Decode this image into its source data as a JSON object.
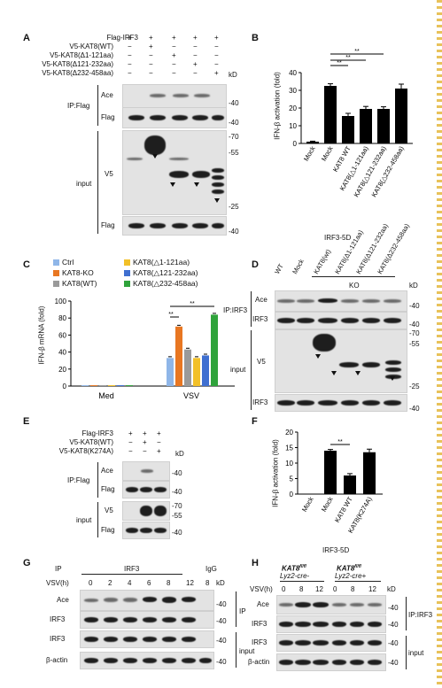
{
  "panels": [
    "A",
    "B",
    "C",
    "D",
    "E",
    "F",
    "G",
    "H"
  ],
  "A": {
    "rows": [
      {
        "label": "Flag-IRF3",
        "signs": [
          "+",
          "+",
          "+",
          "+",
          "+"
        ]
      },
      {
        "label": "V5-KAT8(WT)",
        "signs": [
          "−",
          "+",
          "−",
          "−",
          "−"
        ]
      },
      {
        "label": "V5-KAT8(Δ1-121aa)",
        "signs": [
          "−",
          "−",
          "+",
          "−",
          "−"
        ]
      },
      {
        "label": "V5-KAT8(Δ121-232aa)",
        "signs": [
          "−",
          "−",
          "−",
          "+",
          "−"
        ]
      },
      {
        "label": "V5-KAT8(Δ232-458aa)",
        "signs": [
          "−",
          "−",
          "−",
          "−",
          "+"
        ]
      }
    ],
    "kd": "kD",
    "group_ip": "IP:Flag",
    "group_input": "input",
    "blot_labels": [
      "Ace",
      "Flag",
      "V5",
      "Flag"
    ],
    "markers": [
      "-40",
      "-40",
      "-70",
      "-55",
      "-25",
      "-40"
    ]
  },
  "B": {
    "ylabel": "IFN-β activation (fold)",
    "yticks": [
      "0",
      "10",
      "20",
      "30",
      "40"
    ],
    "footer": "IRF3-5D",
    "sig": [
      "**",
      "**",
      "**"
    ]
  },
  "C": {
    "ylabel": "IFN-β mRNA (fold)",
    "yticks": [
      "0",
      "20",
      "40",
      "60",
      "80",
      "100"
    ],
    "groups": [
      "Med",
      "VSV"
    ],
    "legend": [
      "Ctrl",
      "KAT8-KO",
      "KAT8(WT)",
      "KAT8(△1-121aa)",
      "KAT8(△121-232aa)",
      "KAT8(△232-458aa)"
    ],
    "sig": [
      "**",
      "**"
    ]
  },
  "D": {
    "cols": [
      "WT",
      "Mock",
      "KAT8(wt)",
      "KAT8(Δ1-121aa)",
      "KAT8(Δ121-232aa)",
      "KAT8(Δ232-458aa)"
    ],
    "ko": "KO",
    "kd": "kD",
    "group_ip": "IP:IRF3",
    "group_input": "input",
    "blot_labels": [
      "Ace",
      "IRF3",
      "V5",
      "IRF3"
    ],
    "markers": [
      "-40",
      "-40",
      "-70",
      "-55",
      "-25",
      "-40"
    ]
  },
  "E": {
    "rows": [
      {
        "label": "Flag-IRF3",
        "signs": [
          "+",
          "+",
          "+"
        ]
      },
      {
        "label": "V5-KAT8(WT)",
        "signs": [
          "−",
          "+",
          "−"
        ]
      },
      {
        "label": "V5-KAT8(K274A)",
        "signs": [
          "−",
          "−",
          "+"
        ]
      }
    ],
    "kd": "kD",
    "group_ip": "IP:Flag",
    "group_input": "input",
    "blot_labels": [
      "Ace",
      "Flag",
      "V5",
      "Flag"
    ],
    "markers": [
      "-40",
      "-40",
      "-70",
      "-55",
      "-40"
    ]
  },
  "F": {
    "ylabel": "IFN-β activation (fold)",
    "yticks": [
      "0",
      "5",
      "10",
      "15",
      "20"
    ],
    "footer": "IRF3-5D",
    "sig": "**"
  },
  "G": {
    "ip": "IP",
    "irf3": "IRF3",
    "igg": "IgG",
    "vsv": "VSV(h)",
    "times": [
      "0",
      "2",
      "4",
      "6",
      "8",
      "12",
      "8"
    ],
    "kd": "kD",
    "blot_labels": [
      "Ace",
      "IRF3",
      "IRF3",
      "β-actin"
    ],
    "markers": [
      "-40",
      "-40",
      "-40",
      "-40"
    ],
    "group_ip": "IP",
    "group_input": "input"
  },
  "H": {
    "g1": "KAT8",
    "g1sup": "fl/fl",
    "g1b": "Lyz2-cre-",
    "g2": "KAT8",
    "g2sup": "fl/fl",
    "g2b": "Lyz2-cre+",
    "vsv": "VSV(h)",
    "times": [
      "0",
      "8",
      "12",
      "0",
      "8",
      "12"
    ],
    "kd": "kD",
    "blot_labels": [
      "Ace",
      "IRF3",
      "IRF3",
      "β-actin"
    ],
    "markers": [
      "-40",
      "-40",
      "-40",
      "-40"
    ],
    "group_ip": "IP:IRF3",
    "group_input": "input"
  },
  "chart_data": [
    {
      "type": "bar",
      "title": "",
      "xlabel": "",
      "ylabel": "IFN-β activation (fold)",
      "ylim": [
        0,
        40
      ],
      "categories": [
        "Mock",
        "Mock",
        "KAT8 WT",
        "KAT8(△1-121aa)",
        "KAT8(△121-232aa)",
        "KAT8(△232-458aa)"
      ],
      "values": [
        1,
        32.5,
        15.5,
        19.5,
        19.5,
        31
      ],
      "errors": [
        0.3,
        1.2,
        1.5,
        1.4,
        1.2,
        2.5
      ],
      "color": "#000000"
    },
    {
      "type": "bar",
      "title": "",
      "xlabel": "",
      "ylabel": "IFN-β mRNA (fold)",
      "ylim": [
        0,
        100
      ],
      "categories": [
        "Med",
        "VSV"
      ],
      "series": [
        {
          "name": "Ctrl",
          "color": "#8fb6e8",
          "values": [
            1,
            33
          ]
        },
        {
          "name": "KAT8-KO",
          "color": "#e87722",
          "values": [
            1,
            70
          ]
        },
        {
          "name": "KAT8(WT)",
          "color": "#9a9a9a",
          "values": [
            1,
            43
          ]
        },
        {
          "name": "KAT8(△1-121aa)",
          "color": "#f2c028",
          "values": [
            1,
            33
          ]
        },
        {
          "name": "KAT8(△121-232aa)",
          "color": "#3f6fd0",
          "values": [
            1,
            36
          ]
        },
        {
          "name": "KAT8(△232-458aa)",
          "color": "#2fa33b",
          "values": [
            1,
            84
          ]
        }
      ]
    },
    {
      "type": "bar",
      "title": "",
      "xlabel": "",
      "ylabel": "IFN-β activation (fold)",
      "ylim": [
        0,
        20
      ],
      "categories": [
        "Mock",
        "Mock",
        "KAT8 WT",
        "KAT8(K274A)"
      ],
      "values": [
        0,
        14,
        6,
        13.5
      ],
      "errors": [
        0,
        0.4,
        0.6,
        1.0
      ],
      "color": "#000000"
    }
  ]
}
